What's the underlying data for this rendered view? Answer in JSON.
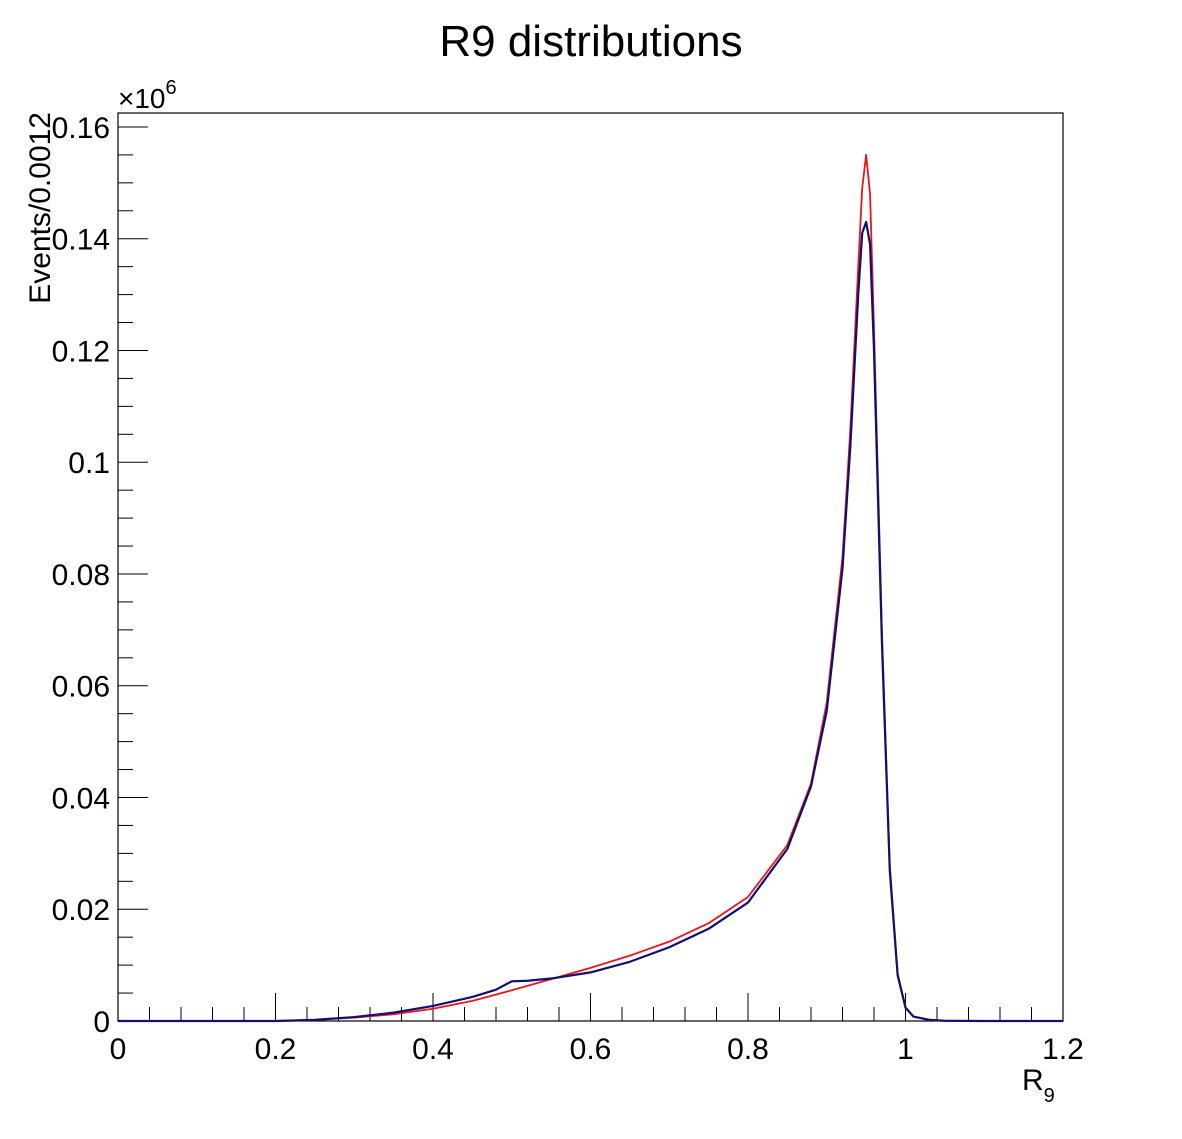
{
  "chart_data": {
    "type": "line",
    "title": "R9 distributions",
    "xlabel": "R",
    "xlabel_subscript": "9",
    "ylabel": "Events/0.0012",
    "y_multiplier": "×10",
    "y_multiplier_exponent": "6",
    "xlim": [
      0,
      1.2
    ],
    "ylim": [
      0,
      0.1625
    ],
    "x_ticks": [
      "0",
      "0.2",
      "0.4",
      "0.6",
      "0.8",
      "1",
      "1.2"
    ],
    "y_ticks": [
      "0",
      "0.02",
      "0.04",
      "0.06",
      "0.08",
      "0.1",
      "0.12",
      "0.14",
      "0.16"
    ],
    "grid": false,
    "legend": "none",
    "series": [
      {
        "color": "#e8151c",
        "x": [
          0,
          0.2,
          0.25,
          0.3,
          0.35,
          0.4,
          0.45,
          0.5,
          0.55,
          0.6,
          0.65,
          0.7,
          0.75,
          0.8,
          0.85,
          0.88,
          0.9,
          0.92,
          0.93,
          0.94,
          0.945,
          0.95,
          0.955,
          0.96,
          0.97,
          0.98,
          0.99,
          1.0,
          1.01,
          1.03,
          1.05,
          1.1,
          1.2
        ],
        "y": [
          0,
          0,
          0.0002,
          0.0006,
          0.0012,
          0.0022,
          0.0036,
          0.0055,
          0.0075,
          0.0095,
          0.0117,
          0.0142,
          0.0175,
          0.0222,
          0.0315,
          0.0425,
          0.057,
          0.083,
          0.106,
          0.135,
          0.149,
          0.155,
          0.148,
          0.124,
          0.07,
          0.028,
          0.0085,
          0.0025,
          0.0008,
          0.0002,
          5e-05,
          0,
          0
        ]
      },
      {
        "color": "#101070",
        "x": [
          0,
          0.2,
          0.25,
          0.3,
          0.35,
          0.4,
          0.45,
          0.48,
          0.5,
          0.52,
          0.55,
          0.6,
          0.65,
          0.7,
          0.75,
          0.8,
          0.85,
          0.88,
          0.9,
          0.92,
          0.93,
          0.94,
          0.945,
          0.95,
          0.955,
          0.96,
          0.97,
          0.98,
          0.99,
          1.0,
          1.01,
          1.03,
          1.05,
          1.1,
          1.2
        ],
        "y": [
          0,
          0,
          0.0002,
          0.0007,
          0.0015,
          0.0027,
          0.0043,
          0.0056,
          0.0071,
          0.0072,
          0.0076,
          0.0087,
          0.0106,
          0.0132,
          0.0165,
          0.0212,
          0.0308,
          0.042,
          0.0555,
          0.081,
          0.103,
          0.13,
          0.141,
          0.143,
          0.139,
          0.12,
          0.068,
          0.027,
          0.0082,
          0.0024,
          0.0008,
          0.0002,
          5e-05,
          0,
          0
        ]
      }
    ]
  }
}
